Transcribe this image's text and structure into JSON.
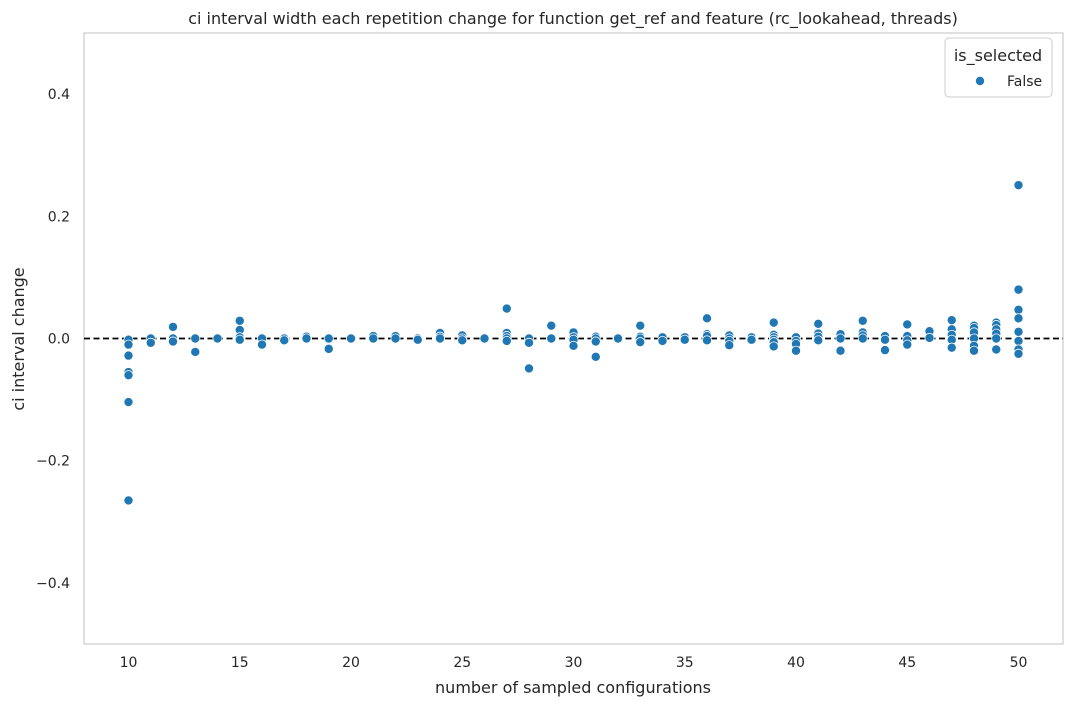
{
  "chart_data": {
    "type": "scatter",
    "title": "ci interval width each repetition change for function get_ref and feature (rc_lookahead, threads)",
    "xlabel": "number of sampled configurations",
    "ylabel": "ci interval change",
    "xlim": [
      8,
      52
    ],
    "ylim": [
      -0.5,
      0.5
    ],
    "xticks": [
      10,
      15,
      20,
      25,
      30,
      35,
      40,
      45,
      50
    ],
    "yticks": [
      -0.4,
      -0.2,
      0.0,
      0.2,
      0.4
    ],
    "xtick_labels": [
      "10",
      "15",
      "20",
      "25",
      "30",
      "35",
      "40",
      "45",
      "50"
    ],
    "ytick_labels": [
      "−0.4",
      "−0.2",
      "0.0",
      "0.2",
      "0.4"
    ],
    "grid": false,
    "reference_line": {
      "y": 0.0,
      "style": "dashed",
      "color": "#000000"
    },
    "legend": {
      "title": "is_selected",
      "placement": "top-right",
      "entries": [
        "False"
      ]
    },
    "series": [
      {
        "name": "False",
        "color": "#1f77b4",
        "points": [
          [
            10,
            -0.002
          ],
          [
            10,
            -0.01
          ],
          [
            10,
            -0.028
          ],
          [
            10,
            -0.055
          ],
          [
            10,
            -0.06
          ],
          [
            10,
            -0.104
          ],
          [
            10,
            -0.265
          ],
          [
            11,
            0.0
          ],
          [
            11,
            -0.007
          ],
          [
            12,
            0.019
          ],
          [
            12,
            0.0
          ],
          [
            12,
            -0.005
          ],
          [
            13,
            0.0
          ],
          [
            13,
            -0.022
          ],
          [
            14,
            0.0
          ],
          [
            15,
            0.029
          ],
          [
            15,
            0.014
          ],
          [
            15,
            0.002
          ],
          [
            15,
            -0.002
          ],
          [
            16,
            0.0
          ],
          [
            16,
            -0.01
          ],
          [
            17,
            0.0
          ],
          [
            17,
            -0.003
          ],
          [
            18,
            0.003
          ],
          [
            18,
            0.0
          ],
          [
            19,
            0.0
          ],
          [
            19,
            -0.017
          ],
          [
            20,
            0.0
          ],
          [
            21,
            0.004
          ],
          [
            21,
            0.0
          ],
          [
            22,
            0.004
          ],
          [
            22,
            0.0
          ],
          [
            23,
            0.0
          ],
          [
            23,
            -0.002
          ],
          [
            24,
            0.009
          ],
          [
            24,
            0.003
          ],
          [
            24,
            0.0
          ],
          [
            25,
            0.005
          ],
          [
            25,
            0.0
          ],
          [
            25,
            -0.003
          ],
          [
            26,
            0.0
          ],
          [
            27,
            0.049
          ],
          [
            27,
            0.009
          ],
          [
            27,
            0.004
          ],
          [
            27,
            0.0
          ],
          [
            27,
            -0.004
          ],
          [
            28,
            0.0
          ],
          [
            28,
            -0.007
          ],
          [
            28,
            -0.049
          ],
          [
            29,
            0.021
          ],
          [
            29,
            0.0
          ],
          [
            30,
            0.01
          ],
          [
            30,
            0.002
          ],
          [
            30,
            -0.002
          ],
          [
            30,
            -0.012
          ],
          [
            31,
            0.003
          ],
          [
            31,
            0.0
          ],
          [
            31,
            -0.005
          ],
          [
            31,
            -0.03
          ],
          [
            32,
            0.0
          ],
          [
            33,
            0.021
          ],
          [
            33,
            0.003
          ],
          [
            33,
            0.0
          ],
          [
            33,
            -0.006
          ],
          [
            34,
            0.002
          ],
          [
            34,
            -0.004
          ],
          [
            35,
            0.002
          ],
          [
            35,
            -0.002
          ],
          [
            36,
            0.033
          ],
          [
            36,
            0.007
          ],
          [
            36,
            0.004
          ],
          [
            36,
            -0.003
          ],
          [
            37,
            0.005
          ],
          [
            37,
            0.0
          ],
          [
            37,
            -0.004
          ],
          [
            37,
            -0.011
          ],
          [
            38,
            0.002
          ],
          [
            38,
            -0.002
          ],
          [
            39,
            0.026
          ],
          [
            39,
            0.006
          ],
          [
            39,
            0.002
          ],
          [
            39,
            -0.002
          ],
          [
            39,
            -0.006
          ],
          [
            39,
            -0.013
          ],
          [
            40,
            0.002
          ],
          [
            40,
            -0.004
          ],
          [
            40,
            -0.009
          ],
          [
            40,
            -0.02
          ],
          [
            41,
            0.024
          ],
          [
            41,
            0.008
          ],
          [
            41,
            0.003
          ],
          [
            41,
            -0.003
          ],
          [
            42,
            0.007
          ],
          [
            42,
            0.0
          ],
          [
            42,
            -0.02
          ],
          [
            43,
            0.029
          ],
          [
            43,
            0.01
          ],
          [
            43,
            0.005
          ],
          [
            43,
            0.0
          ],
          [
            44,
            0.004
          ],
          [
            44,
            -0.002
          ],
          [
            44,
            -0.019
          ],
          [
            45,
            0.023
          ],
          [
            45,
            0.004
          ],
          [
            45,
            -0.003
          ],
          [
            45,
            -0.01
          ],
          [
            46,
            0.012
          ],
          [
            46,
            0.001
          ],
          [
            47,
            0.03
          ],
          [
            47,
            0.015
          ],
          [
            47,
            0.006
          ],
          [
            47,
            -0.002
          ],
          [
            47,
            -0.015
          ],
          [
            48,
            0.021
          ],
          [
            48,
            0.017
          ],
          [
            48,
            0.01
          ],
          [
            48,
            0.0
          ],
          [
            48,
            -0.012
          ],
          [
            48,
            -0.02
          ],
          [
            49,
            0.026
          ],
          [
            49,
            0.022
          ],
          [
            49,
            0.015
          ],
          [
            49,
            0.008
          ],
          [
            49,
            0.0
          ],
          [
            49,
            -0.018
          ],
          [
            50,
            0.251
          ],
          [
            50,
            0.08
          ],
          [
            50,
            0.047
          ],
          [
            50,
            0.033
          ],
          [
            50,
            0.011
          ],
          [
            50,
            -0.004
          ],
          [
            50,
            -0.018
          ],
          [
            50,
            -0.025
          ]
        ]
      }
    ]
  }
}
